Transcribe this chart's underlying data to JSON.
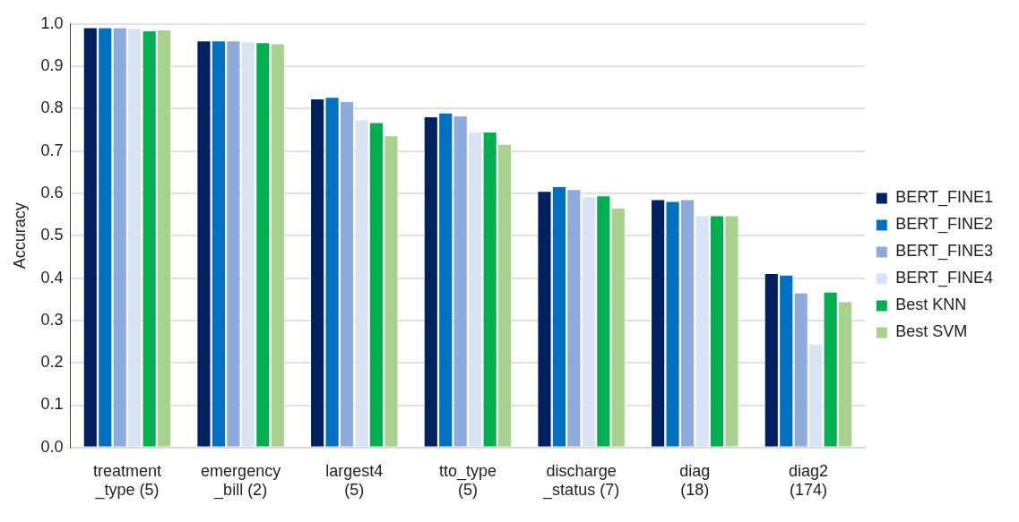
{
  "chart_data": {
    "type": "bar",
    "ylabel": "Accuracy",
    "categories": [
      "treatment\n_type (5)",
      "emergency\n_bill (2)",
      "largest4\n(5)",
      "tto_type\n(5)",
      "discharge\n_status (7)",
      "diag\n(18)",
      "diag2\n(174)"
    ],
    "series": [
      {
        "name": "BERT_FINE1",
        "color": "#002060",
        "values": [
          0.992,
          0.961,
          0.824,
          0.782,
          0.606,
          0.586,
          0.412
        ]
      },
      {
        "name": "BERT_FINE2",
        "color": "#0070c0",
        "values": [
          0.992,
          0.961,
          0.828,
          0.791,
          0.617,
          0.582,
          0.408
        ]
      },
      {
        "name": "BERT_FINE3",
        "color": "#8faadc",
        "values": [
          0.992,
          0.961,
          0.818,
          0.784,
          0.61,
          0.586,
          0.366
        ]
      },
      {
        "name": "BERT_FINE4",
        "color": "#dae3f3",
        "values": [
          0.99,
          0.959,
          0.775,
          0.746,
          0.593,
          0.548,
          0.245
        ]
      },
      {
        "name": "Best KNN",
        "color": "#00b050",
        "values": [
          0.985,
          0.957,
          0.768,
          0.746,
          0.595,
          0.548,
          0.368
        ]
      },
      {
        "name": "Best SVM",
        "color": "#a9d18e",
        "values": [
          0.987,
          0.954,
          0.737,
          0.717,
          0.566,
          0.548,
          0.345
        ]
      }
    ],
    "ylim": [
      0,
      1
    ],
    "yticks": [
      {
        "value": 0,
        "label": "0.0"
      },
      {
        "value": 0.1,
        "label": "0.1"
      },
      {
        "value": 0.2,
        "label": "0.2"
      },
      {
        "value": 0.3,
        "label": "0.3"
      },
      {
        "value": 0.4,
        "label": "0.4"
      },
      {
        "value": 0.5,
        "label": "0.5"
      },
      {
        "value": 0.6,
        "label": "0.6"
      },
      {
        "value": 0.7,
        "label": "0.7"
      },
      {
        "value": 0.8,
        "label": "0.8"
      },
      {
        "value": 0.9,
        "label": "0.9"
      },
      {
        "value": 1,
        "label": "1.0"
      }
    ],
    "grid": "y",
    "legend": "right"
  }
}
